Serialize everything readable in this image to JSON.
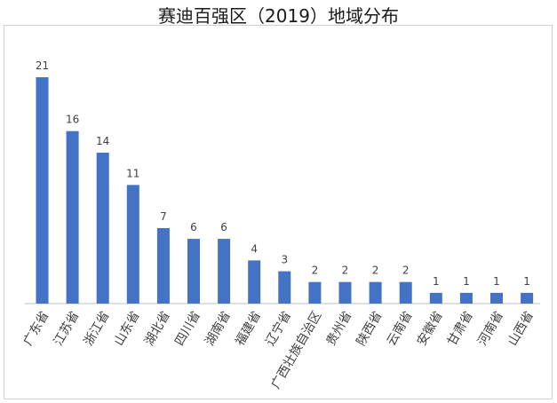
{
  "chart_data": {
    "type": "bar",
    "title": "赛迪百强区（2019）地域分布",
    "xlabel": "",
    "ylabel": "",
    "ylim": [
      0,
      21
    ],
    "grid": false,
    "legend": "none",
    "bar_color": "#4472c4",
    "categories": [
      "广东省",
      "江苏省",
      "浙江省",
      "山东省",
      "湖北省",
      "四川省",
      "湖南省",
      "福建省",
      "辽宁省",
      "广西壮族自治区",
      "贵州省",
      "陕西省",
      "云南省",
      "安徽省",
      "甘肃省",
      "河南省",
      "山西省"
    ],
    "values": [
      21,
      16,
      14,
      11,
      7,
      6,
      6,
      4,
      3,
      2,
      2,
      2,
      2,
      1,
      1,
      1,
      1
    ]
  }
}
